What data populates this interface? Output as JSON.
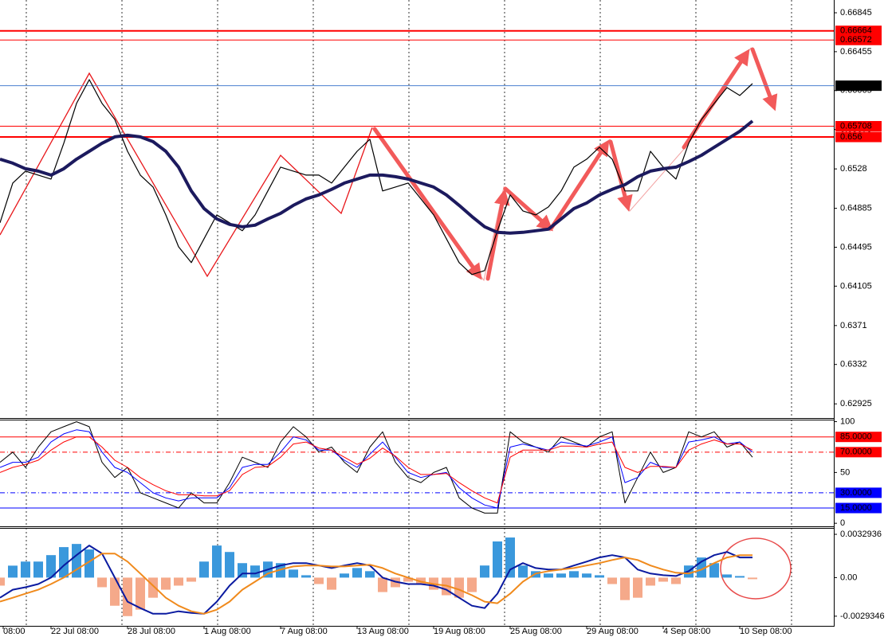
{
  "chart_data": [
    {
      "type": "line",
      "xlim": [
        0,
        261.25
      ],
      "ylim": [
        0.62783,
        0.66973
      ],
      "yticks": [
        0.66845,
        0.66455,
        0.66065,
        0.65675,
        0.6528,
        0.64885,
        0.64495,
        0.64105,
        0.6371,
        0.6332,
        0.62925
      ],
      "x": [
        0,
        4,
        8,
        12,
        16,
        20,
        24,
        28,
        32,
        36,
        40,
        44,
        48,
        52,
        56,
        60,
        64,
        68,
        72,
        76,
        80,
        84,
        88,
        92,
        96,
        100,
        104,
        108,
        112,
        116,
        120,
        124,
        128,
        132,
        136,
        140,
        144,
        148,
        152,
        156,
        160,
        164,
        168,
        172,
        176,
        180,
        184,
        188,
        192,
        196,
        200,
        204,
        208,
        212,
        216,
        220,
        224,
        228,
        232,
        236
      ],
      "series": [
        {
          "color": "#000000",
          "width": 1.2,
          "values": [
            0.6474,
            0.65138,
            0.65258,
            0.65218,
            0.65178,
            0.65537,
            0.65936,
            0.66175,
            0.65936,
            0.65776,
            0.65457,
            0.65218,
            0.65098,
            0.64819,
            0.645,
            0.64341,
            0.6458,
            0.64819,
            0.6474,
            0.6466,
            0.64819,
            0.65059,
            0.65298,
            0.65258,
            0.65218,
            0.65218,
            0.65138,
            0.65298,
            0.65457,
            0.65577,
            0.65059,
            0.65098,
            0.65138,
            0.64979,
            0.64819,
            0.6458,
            0.64341,
            0.64221,
            0.64261,
            0.6466,
            0.65019,
            0.64859,
            0.64819,
            0.64899,
            0.65059,
            0.65298,
            0.65378,
            0.65497,
            0.65378,
            0.65059,
            0.65059,
            0.65457,
            0.65298,
            0.65178,
            0.65537,
            0.65776,
            0.65936,
            0.66095,
            0.66016,
            0.66135
          ]
        },
        {
          "color": "#1c1a5e",
          "width": 4,
          "values": [
            0.65378,
            0.65338,
            0.65282,
            0.65258,
            0.65218,
            0.65282,
            0.65378,
            0.65457,
            0.65537,
            0.65601,
            0.65617,
            0.65601,
            0.65553,
            0.65457,
            0.65298,
            0.65059,
            0.64883,
            0.64779,
            0.64724,
            0.647,
            0.64716,
            0.64779,
            0.64835,
            0.64915,
            0.64979,
            0.65019,
            0.65075,
            0.65138,
            0.65178,
            0.65218,
            0.65218,
            0.65202,
            0.65178,
            0.65138,
            0.65098,
            0.65019,
            0.64915,
            0.64803,
            0.647,
            0.64644,
            0.64636,
            0.64644,
            0.6466,
            0.64676,
            0.64779,
            0.64883,
            0.64939,
            0.65019,
            0.65075,
            0.65122,
            0.65202,
            0.65258,
            0.65282,
            0.65298,
            0.65354,
            0.65417,
            0.65497,
            0.65577,
            0.65657,
            0.6576
          ]
        }
      ],
      "levels": [
        {
          "value": 0.66664,
          "color": "#ff0000",
          "box": "#ff0000",
          "width": 2
        },
        {
          "value": 0.66572,
          "color": "#ff0000",
          "box": "#ff0000",
          "width": 1
        },
        {
          "value": 0.66114,
          "color": "#4a7fd0",
          "box": "#000000",
          "width": 1
        },
        {
          "value": 0.65708,
          "color": "#ff0000",
          "box": "#ff0000",
          "width": 1
        },
        {
          "value": 0.656,
          "color": "#ff0000",
          "box": "#ff0000",
          "width": 2
        }
      ]
    },
    {
      "type": "line",
      "xlim": [
        0,
        261.25
      ],
      "ylim": [
        -3,
        102
      ],
      "yticks": [
        100,
        50,
        0
      ],
      "x": [
        0,
        4,
        8,
        12,
        16,
        20,
        24,
        28,
        32,
        36,
        40,
        44,
        48,
        52,
        56,
        60,
        64,
        68,
        72,
        76,
        80,
        84,
        88,
        92,
        96,
        100,
        104,
        108,
        112,
        116,
        120,
        124,
        128,
        132,
        136,
        140,
        144,
        148,
        152,
        156,
        160,
        164,
        168,
        172,
        176,
        180,
        184,
        188,
        192,
        196,
        200,
        204,
        208,
        212,
        216,
        220,
        224,
        228,
        232,
        236
      ],
      "series": [
        {
          "color": "#000000",
          "width": 1,
          "values": [
            60,
            70,
            55,
            75,
            90,
            95,
            100,
            95,
            60,
            45,
            55,
            30,
            25,
            20,
            15,
            30,
            20,
            20,
            40,
            65,
            60,
            55,
            80,
            95,
            85,
            70,
            75,
            60,
            50,
            75,
            90,
            60,
            45,
            40,
            50,
            55,
            25,
            15,
            10,
            10,
            90,
            80,
            75,
            70,
            85,
            80,
            75,
            85,
            90,
            20,
            45,
            70,
            50,
            55,
            90,
            85,
            90,
            75,
            80,
            65
          ]
        },
        {
          "color": "#0000ff",
          "width": 1,
          "values": [
            55,
            60,
            60,
            65,
            80,
            88,
            92,
            90,
            70,
            55,
            50,
            40,
            30,
            25,
            22,
            25,
            25,
            25,
            35,
            55,
            58,
            58,
            70,
            85,
            82,
            72,
            72,
            62,
            55,
            68,
            80,
            65,
            50,
            45,
            48,
            50,
            35,
            25,
            18,
            15,
            75,
            78,
            75,
            72,
            80,
            78,
            76,
            80,
            85,
            40,
            45,
            60,
            55,
            55,
            80,
            82,
            85,
            78,
            80,
            70
          ]
        },
        {
          "color": "#ff0000",
          "width": 1,
          "values": [
            50,
            55,
            58,
            62,
            72,
            80,
            85,
            85,
            75,
            62,
            55,
            45,
            38,
            32,
            28,
            28,
            27,
            27,
            32,
            48,
            55,
            56,
            65,
            78,
            80,
            74,
            72,
            65,
            58,
            64,
            74,
            66,
            55,
            48,
            48,
            49,
            40,
            32,
            25,
            20,
            65,
            72,
            72,
            72,
            76,
            76,
            75,
            78,
            80,
            55,
            50,
            56,
            56,
            55,
            72,
            78,
            82,
            78,
            78,
            72
          ]
        }
      ],
      "levels": [
        {
          "value": 85,
          "label": "85.0000",
          "color": "#ff0000",
          "box": "#ff0000",
          "dash": "none"
        },
        {
          "value": 70,
          "label": "70.0000",
          "color": "#ff0000",
          "box": "#ff0000",
          "dash": "6 3 1 3"
        },
        {
          "value": 30,
          "label": "30.0000",
          "color": "#0000ff",
          "box": "#0000ff",
          "dash": "6 3 1 3"
        },
        {
          "value": 15,
          "label": "15.0000",
          "color": "#0000ff",
          "box": "#0000ff",
          "dash": "none"
        }
      ]
    },
    {
      "type": "macd",
      "xlim": [
        0,
        261.25
      ],
      "ylim": [
        -0.00367,
        0.00378
      ],
      "yticks": [
        0.0032936,
        {
          "value": 0,
          "label": "0.00"
        },
        -0.0029346
      ],
      "xticks": [
        {
          "value": 1,
          "label": "08:00"
        },
        {
          "value": 16,
          "label": "22 Jul 08:00"
        },
        {
          "value": 40,
          "label": "28 Jul 08:00"
        },
        {
          "value": 64,
          "label": "1 Aug 08:00"
        },
        {
          "value": 88,
          "label": "7 Aug 08:00"
        },
        {
          "value": 112,
          "label": "13 Aug 08:00"
        },
        {
          "value": 136,
          "label": "19 Aug 08:00"
        },
        {
          "value": 160,
          "label": "25 Aug 08:00"
        },
        {
          "value": 184,
          "label": "29 Aug 08:00"
        },
        {
          "value": 208,
          "label": "4 Sep 08:00"
        },
        {
          "value": 232,
          "label": "10 Sep 08:00"
        }
      ],
      "x": [
        0,
        4,
        8,
        12,
        16,
        20,
        24,
        28,
        32,
        36,
        40,
        44,
        48,
        52,
        56,
        60,
        64,
        68,
        72,
        76,
        80,
        84,
        88,
        92,
        96,
        100,
        104,
        108,
        112,
        116,
        120,
        124,
        128,
        132,
        136,
        140,
        144,
        148,
        152,
        156,
        160,
        164,
        168,
        172,
        176,
        180,
        184,
        188,
        192,
        196,
        200,
        204,
        208,
        212,
        216,
        220,
        224,
        228,
        232,
        236
      ],
      "histogram": {
        "positive_color": "#3a98dc",
        "negative_color": "#f5a98a",
        "values": [
          -0.00061,
          0.00091,
          0.00122,
          0.00122,
          0.00171,
          0.00232,
          0.00256,
          0.00214,
          -0.00073,
          -0.00214,
          -0.00293,
          -0.00244,
          -0.00153,
          -0.00092,
          -0.00061,
          -0.00031,
          0.00122,
          0.00244,
          0.00195,
          0.0011,
          0.00092,
          0.00122,
          0.0011,
          0.00061,
          0.00018,
          -0.00049,
          -0.00092,
          0.00031,
          0.00073,
          0.00049,
          -0.0011,
          -0.00073,
          -0.00031,
          -0.00049,
          -0.00092,
          -0.00134,
          -0.00153,
          -0.0011,
          0.00092,
          0.00275,
          0.00305,
          0.00092,
          0.00049,
          0.00031,
          0.00031,
          0.00049,
          0.00031,
          0.00018,
          -0.00049,
          -0.00171,
          -0.00153,
          -0.00061,
          -0.00031,
          -0.00049,
          0.00092,
          0.00153,
          0.0011,
          0.00024,
          0.00012,
          -0.00012
        ]
      },
      "series": [
        {
          "color": "#0a1aa0",
          "width": 2,
          "values": [
            -0.00153,
            -0.00092,
            -0.00073,
            -0.00049,
            0,
            0.00092,
            0.00171,
            0.00244,
            0.00183,
            0,
            -0.00183,
            -0.00232,
            -0.00275,
            -0.00275,
            -0.00256,
            -0.00268,
            -0.00275,
            -0.00183,
            -0.00061,
            0.00031,
            0.00031,
            0.00061,
            0.00092,
            0.0011,
            0.0011,
            0.00092,
            0.00073,
            0.00092,
            0.0011,
            0.00092,
            0,
            -0.00031,
            -0.00049,
            -0.00049,
            -0.00061,
            -0.00092,
            -0.00153,
            -0.00214,
            -0.00232,
            -0.00122,
            0.00061,
            0.0011,
            0.00073,
            0.00061,
            0.00061,
            0.00092,
            0.00122,
            0.00153,
            0.00171,
            0.00153,
            0.00061,
            0.00031,
            0.00018,
            0.00012,
            0.00049,
            0.00122,
            0.00171,
            0.00195,
            0.00153,
            0.00153
          ]
        },
        {
          "color": "#f08a1c",
          "width": 2,
          "values": [
            -0.00183,
            -0.00153,
            -0.00122,
            -0.00092,
            -0.00049,
            0,
            0.00061,
            0.00122,
            0.00183,
            0.00183,
            0.00122,
            0.00031,
            -0.00061,
            -0.00153,
            -0.00214,
            -0.00256,
            -0.00275,
            -0.00244,
            -0.00183,
            -0.00092,
            -0.00031,
            0.00031,
            0.00061,
            0.00085,
            0.00092,
            0.00092,
            0.00085,
            0.00085,
            0.00092,
            0.00098,
            0.00073,
            0.00031,
            0,
            -0.00031,
            -0.00049,
            -0.00061,
            -0.00092,
            -0.00134,
            -0.00183,
            -0.00195,
            -0.00122,
            -0.00031,
            0.00031,
            0.00049,
            0.00061,
            0.00073,
            0.00092,
            0.0011,
            0.00134,
            0.00153,
            0.00134,
            0.00092,
            0.00061,
            0.00037,
            0.00031,
            0.00061,
            0.0011,
            0.00153,
            0.00171,
            0.00171
          ]
        }
      ]
    }
  ]
}
